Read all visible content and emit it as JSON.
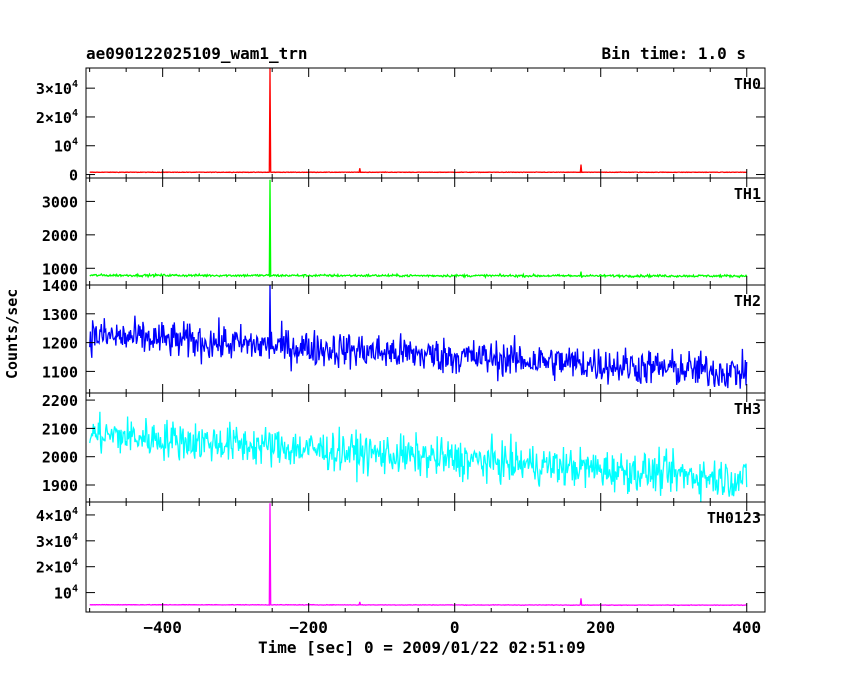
{
  "header": {
    "source_name": "ae090122025109_wam1_trn",
    "bin_time": "Bin time: 1.0 s"
  },
  "chart_data": {
    "type": "line",
    "ylabel": "Counts/sec",
    "xlabel": "Time [sec] 0 = 2009/01/22 02:51:09",
    "xlim": [
      -505,
      425
    ],
    "x_ticks": [
      -400,
      -200,
      0,
      200,
      400
    ],
    "x_tick_labels": [
      "−400",
      "−200",
      "0",
      "200",
      "400"
    ],
    "panels": [
      {
        "name": "TH0",
        "color": "#ff0000",
        "ylim": [
          -1200,
          37000
        ],
        "y_ticks": [
          0,
          10000,
          20000,
          30000
        ],
        "y_tick_labels": [
          {
            "base": "0",
            "exp": ""
          },
          {
            "base": "10",
            "exp": "4"
          },
          {
            "base": "2×10",
            "exp": "4"
          },
          {
            "base": "3×10",
            "exp": "4"
          }
        ],
        "baseline": 800,
        "noise": 60,
        "trend": 0,
        "spikes": [
          [
            -253,
            37000
          ],
          [
            -130,
            2200
          ],
          [
            173,
            3500
          ]
        ]
      },
      {
        "name": "TH1",
        "color": "#00ff00",
        "ylim": [
          500,
          3700
        ],
        "y_ticks": [
          1000,
          2000,
          3000
        ],
        "y_tick_labels": [
          {
            "base": "1000",
            "exp": ""
          },
          {
            "base": "2000",
            "exp": ""
          },
          {
            "base": "3000",
            "exp": ""
          }
        ],
        "baseline": 790,
        "noise": 25,
        "trend": -20,
        "spikes": [
          [
            -253,
            3650
          ],
          [
            173,
            900
          ]
        ]
      },
      {
        "name": "TH2",
        "color": "#0000ff",
        "ylim": [
          1025,
          1400
        ],
        "y_ticks": [
          1100,
          1200,
          1300,
          1400
        ],
        "y_tick_labels": [
          {
            "base": "1100",
            "exp": ""
          },
          {
            "base": "1200",
            "exp": ""
          },
          {
            "base": "1300",
            "exp": ""
          },
          {
            "base": "1400",
            "exp": ""
          }
        ],
        "baseline": 1225,
        "noise": 45,
        "trend": -130,
        "spikes": [
          [
            -253,
            1400
          ]
        ]
      },
      {
        "name": "TH3",
        "color": "#00ffff",
        "ylim": [
          1840,
          2225
        ],
        "y_ticks": [
          1900,
          2000,
          2100,
          2200
        ],
        "y_tick_labels": [
          {
            "base": "1900",
            "exp": ""
          },
          {
            "base": "2000",
            "exp": ""
          },
          {
            "base": "2100",
            "exp": ""
          },
          {
            "base": "2200",
            "exp": ""
          }
        ],
        "baseline": 2080,
        "noise": 50,
        "trend": -160,
        "spikes": []
      },
      {
        "name": "TH0123",
        "color": "#ff00ff",
        "ylim": [
          2500,
          45000
        ],
        "y_ticks": [
          10000,
          20000,
          30000,
          40000
        ],
        "y_tick_labels": [
          {
            "base": "10",
            "exp": "4"
          },
          {
            "base": "2×10",
            "exp": "4"
          },
          {
            "base": "3×10",
            "exp": "4"
          },
          {
            "base": "4×10",
            "exp": "4"
          }
        ],
        "baseline": 5300,
        "noise": 70,
        "trend": -150,
        "spikes": [
          [
            -253,
            44500
          ],
          [
            -130,
            6400
          ],
          [
            173,
            7800
          ]
        ]
      }
    ]
  }
}
